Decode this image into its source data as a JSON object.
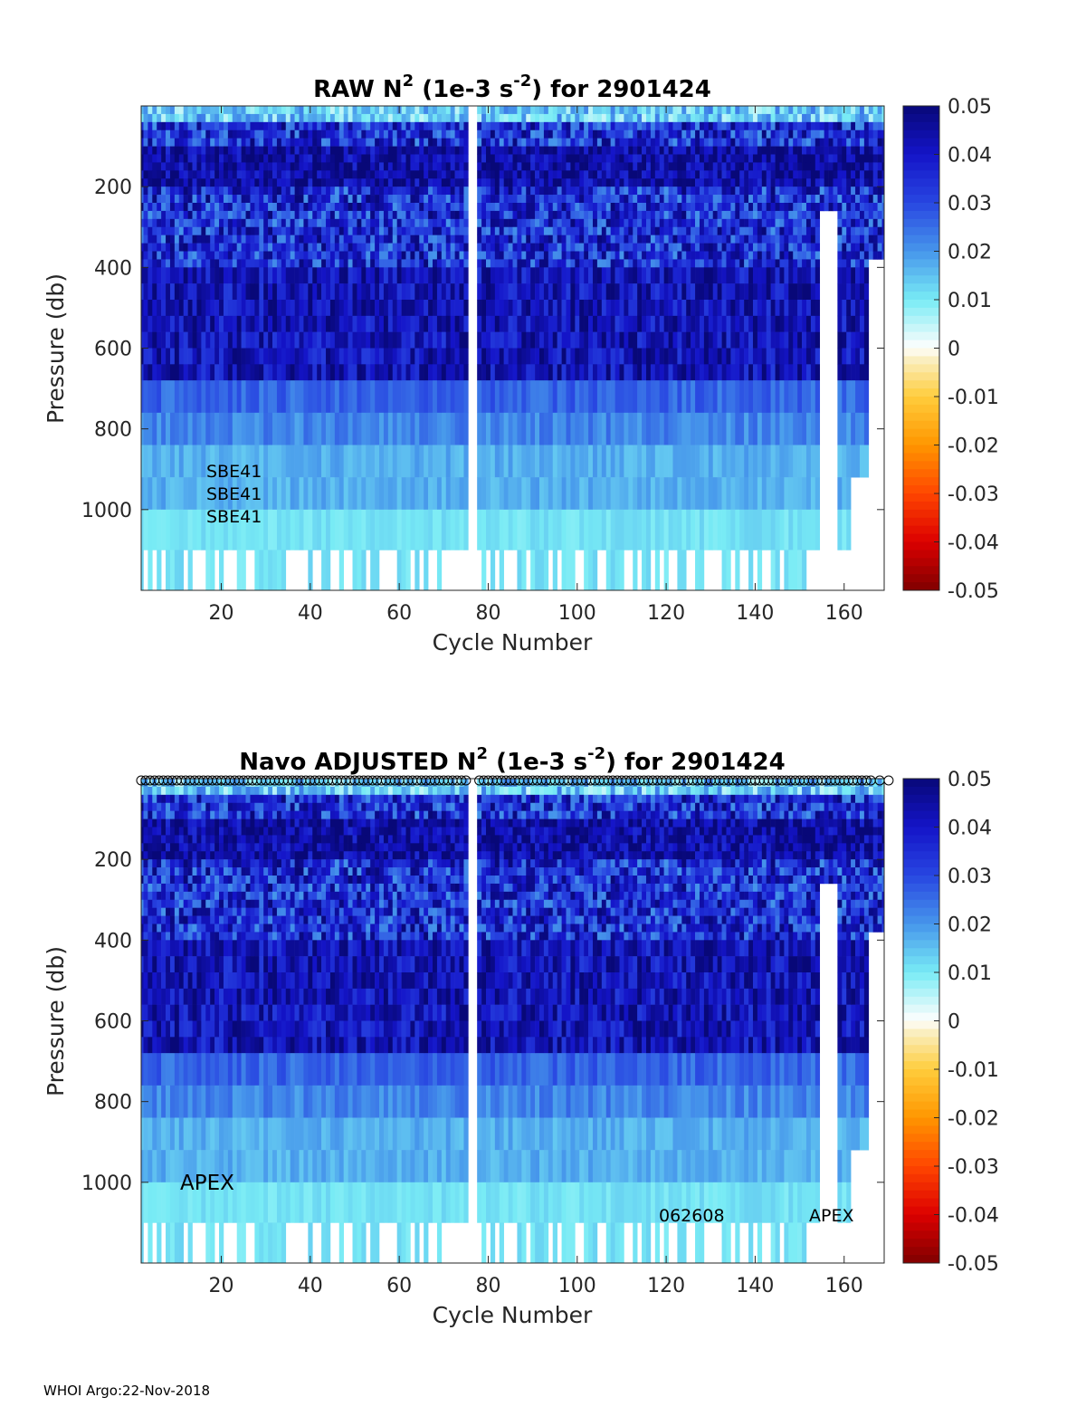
{
  "footer": "WHOI Argo:22-Nov-2018",
  "chart_data": [
    {
      "type": "heatmap",
      "title_main": "RAW N",
      "title_sup": "2",
      "title_mid": " (1e-3 s",
      "title_sup2": "-2",
      "title_end": ") for 2901424",
      "xlabel": "Cycle Number",
      "ylabel": "Pressure (db)",
      "xlim": [
        2,
        169
      ],
      "ylim": [
        0,
        1200
      ],
      "xticks": [
        "20",
        "40",
        "60",
        "80",
        "100",
        "120",
        "140",
        "160"
      ],
      "yticks": [
        "200",
        "400",
        "600",
        "800",
        "1000"
      ],
      "colorbar_ticks": [
        "0.05",
        "0.04",
        "0.03",
        "0.02",
        "0.01",
        "0",
        "-0.01",
        "-0.02",
        "-0.03",
        "-0.04",
        "-0.05"
      ],
      "clim": [
        -0.05,
        0.05
      ],
      "annotations": [
        "SBE41",
        "SBE41",
        "SBE41"
      ],
      "missing_cycles": [
        76,
        77
      ]
    },
    {
      "type": "heatmap",
      "title_main": "Navo  ADJUSTED N",
      "title_sup": "2",
      "title_mid": " (1e-3 s",
      "title_sup2": "-2",
      "title_end": ") for 2901424",
      "xlabel": "Cycle Number",
      "ylabel": "Pressure (db)",
      "xlim": [
        2,
        169
      ],
      "ylim": [
        0,
        1200
      ],
      "xticks": [
        "20",
        "40",
        "60",
        "80",
        "100",
        "120",
        "140",
        "160"
      ],
      "yticks": [
        "200",
        "400",
        "600",
        "800",
        "1000"
      ],
      "colorbar_ticks": [
        "0.05",
        "0.04",
        "0.03",
        "0.02",
        "0.01",
        "0",
        "-0.01",
        "-0.02",
        "-0.03",
        "-0.04",
        "-0.05"
      ],
      "clim": [
        -0.05,
        0.05
      ],
      "annotations": [
        "APEX",
        "062608",
        "APEX"
      ],
      "qc_marker": "o",
      "missing_cycles": [
        76,
        77
      ]
    }
  ],
  "colors": {
    "dark_blue": "#0a0a8c",
    "blue": "#1f2de0",
    "mid_blue": "#3d6ae8",
    "light_blue": "#5aa0ee",
    "cyan": "#7fe6f5",
    "pale": "#f2ecc4",
    "zero": "#ffffff"
  }
}
